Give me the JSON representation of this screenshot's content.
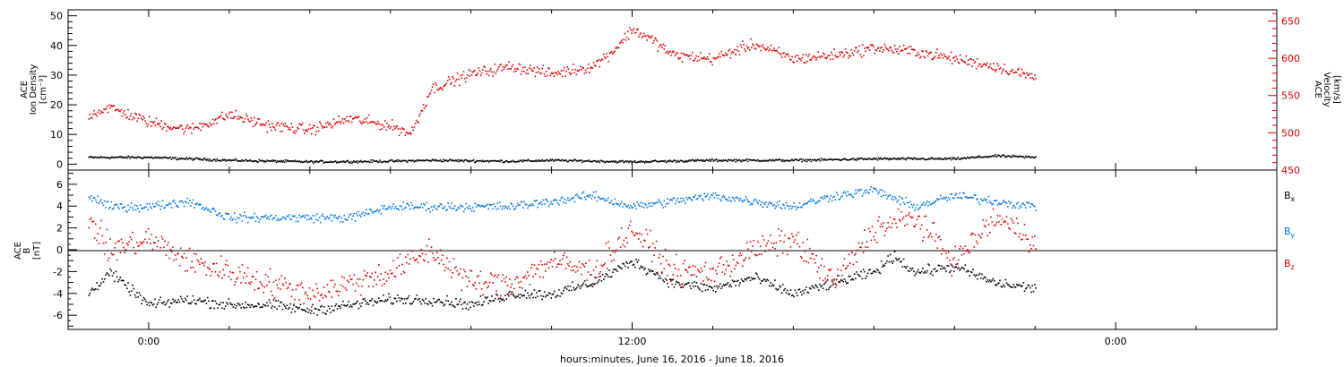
{
  "xaxis": {
    "label": "hours:minutes, June 16, 2016 - June 18, 2016",
    "range_hours": [
      -2,
      28
    ],
    "ticks": [
      {
        "h": 0,
        "label": "0:00"
      },
      {
        "h": 12,
        "label": "12:00"
      },
      {
        "h": 24,
        "label": "0:00"
      }
    ],
    "minor_step_hours": 2
  },
  "colors": {
    "black": "#000000",
    "red": "#e00000",
    "blue": "#0078e6"
  },
  "chart_data": [
    {
      "type": "scatter",
      "panel": "top",
      "ylabel_left": [
        "ACE",
        "Ion Density",
        "[cm⁻³]"
      ],
      "ylabel_right": [
        "ACE",
        "Velocity",
        "[km/s]"
      ],
      "ylim_left": [
        -2,
        52
      ],
      "ylim_right": [
        450,
        665
      ],
      "left_ticks": [
        "0",
        "10",
        "20",
        "30",
        "40",
        "50"
      ],
      "left_tick_values": [
        0,
        10,
        20,
        30,
        40,
        50
      ],
      "right_ticks": [
        "450",
        "500",
        "550",
        "600",
        "650"
      ],
      "right_tick_values": [
        450,
        500,
        550,
        600,
        650
      ],
      "data_end_hour": 22,
      "series": [
        {
          "axis": "left",
          "color": "black",
          "points": [
            [
              -1.5,
              2.5
            ],
            [
              0,
              2.5
            ],
            [
              1,
              2
            ],
            [
              2,
              1.5
            ],
            [
              4,
              1
            ],
            [
              6,
              1.2
            ],
            [
              7,
              1.5
            ],
            [
              9,
              1.2
            ],
            [
              10,
              1.5
            ],
            [
              12,
              1
            ],
            [
              14,
              1.5
            ],
            [
              16,
              1.5
            ],
            [
              18,
              2
            ],
            [
              20,
              2
            ],
            [
              21,
              3
            ],
            [
              22,
              2.5
            ]
          ]
        },
        {
          "axis": "right",
          "color": "red",
          "points": [
            [
              -1.5,
              525
            ],
            [
              -1,
              535
            ],
            [
              0,
              515
            ],
            [
              1,
              505
            ],
            [
              2,
              525
            ],
            [
              3,
              510
            ],
            [
              4,
              505
            ],
            [
              5,
              520
            ],
            [
              6,
              510
            ],
            [
              6.5,
              500
            ],
            [
              7,
              560
            ],
            [
              8,
              580
            ],
            [
              9,
              590
            ],
            [
              10,
              580
            ],
            [
              11,
              590
            ],
            [
              11.5,
              610
            ],
            [
              12,
              640
            ],
            [
              12.5,
              625
            ],
            [
              13,
              605
            ],
            [
              14,
              600
            ],
            [
              15,
              620
            ],
            [
              16,
              600
            ],
            [
              17,
              605
            ],
            [
              18,
              615
            ],
            [
              19,
              610
            ],
            [
              20,
              600
            ],
            [
              21,
              590
            ],
            [
              22,
              575
            ]
          ]
        }
      ]
    },
    {
      "type": "scatter",
      "panel": "bottom",
      "ylabel_left": [
        "ACE",
        "B",
        "[nT]"
      ],
      "ylim": [
        -7.3,
        7.3
      ],
      "ticks": [
        "-6",
        "-4",
        "-2",
        "0",
        "2",
        "4",
        "6"
      ],
      "tick_values": [
        -6,
        -4,
        -2,
        0,
        2,
        4,
        6
      ],
      "zero_line": true,
      "data_end_hour": 22,
      "legend": [
        {
          "base": "B",
          "sub": "x",
          "color": "black"
        },
        {
          "base": "B",
          "sub": "y",
          "color": "blue"
        },
        {
          "base": "B",
          "sub": "z",
          "color": "red"
        }
      ],
      "series": [
        {
          "name": "Bx",
          "color": "black",
          "points": [
            [
              -1.5,
              -4
            ],
            [
              -1,
              -2
            ],
            [
              0,
              -5
            ],
            [
              1,
              -4.5
            ],
            [
              2,
              -5
            ],
            [
              3,
              -5
            ],
            [
              4,
              -5.5
            ],
            [
              5,
              -5
            ],
            [
              6,
              -4.5
            ],
            [
              7,
              -4.5
            ],
            [
              8,
              -5
            ],
            [
              9,
              -4
            ],
            [
              10,
              -4
            ],
            [
              11,
              -3
            ],
            [
              12,
              -1
            ],
            [
              13,
              -3
            ],
            [
              14,
              -3.5
            ],
            [
              15,
              -2.5
            ],
            [
              16,
              -4
            ],
            [
              17,
              -3
            ],
            [
              18,
              -2
            ],
            [
              18.5,
              -0.5
            ],
            [
              19,
              -2
            ],
            [
              20,
              -1.5
            ],
            [
              21,
              -3
            ],
            [
              22,
              -3.5
            ]
          ]
        },
        {
          "name": "By",
          "color": "blue",
          "points": [
            [
              -1.5,
              5
            ],
            [
              -1,
              4
            ],
            [
              0,
              4
            ],
            [
              1,
              4.5
            ],
            [
              2,
              3
            ],
            [
              3,
              3
            ],
            [
              4,
              3
            ],
            [
              5,
              3
            ],
            [
              6,
              4
            ],
            [
              7,
              4
            ],
            [
              8,
              4
            ],
            [
              9,
              4
            ],
            [
              10,
              4.5
            ],
            [
              11,
              5
            ],
            [
              12,
              4
            ],
            [
              13,
              4.5
            ],
            [
              14,
              5
            ],
            [
              15,
              4.5
            ],
            [
              16,
              4
            ],
            [
              17,
              5
            ],
            [
              18,
              5.5
            ],
            [
              19,
              4
            ],
            [
              20,
              5
            ],
            [
              21,
              4.5
            ],
            [
              22,
              4
            ]
          ]
        },
        {
          "name": "Bz",
          "color": "red",
          "points": [
            [
              -1.5,
              3
            ],
            [
              -1,
              0
            ],
            [
              0,
              1
            ],
            [
              1,
              -1
            ],
            [
              2,
              -2
            ],
            [
              3,
              -3
            ],
            [
              4,
              -4
            ],
            [
              5,
              -3
            ],
            [
              6,
              -2
            ],
            [
              7,
              0
            ],
            [
              8,
              -3
            ],
            [
              9,
              -3
            ],
            [
              10,
              -1
            ],
            [
              11,
              -2
            ],
            [
              12,
              2
            ],
            [
              13,
              -2
            ],
            [
              14,
              -2
            ],
            [
              15,
              0
            ],
            [
              16,
              1
            ],
            [
              17,
              -3
            ],
            [
              18,
              2
            ],
            [
              19,
              3
            ],
            [
              20,
              -1
            ],
            [
              21,
              3
            ],
            [
              22,
              1
            ]
          ]
        }
      ]
    }
  ]
}
